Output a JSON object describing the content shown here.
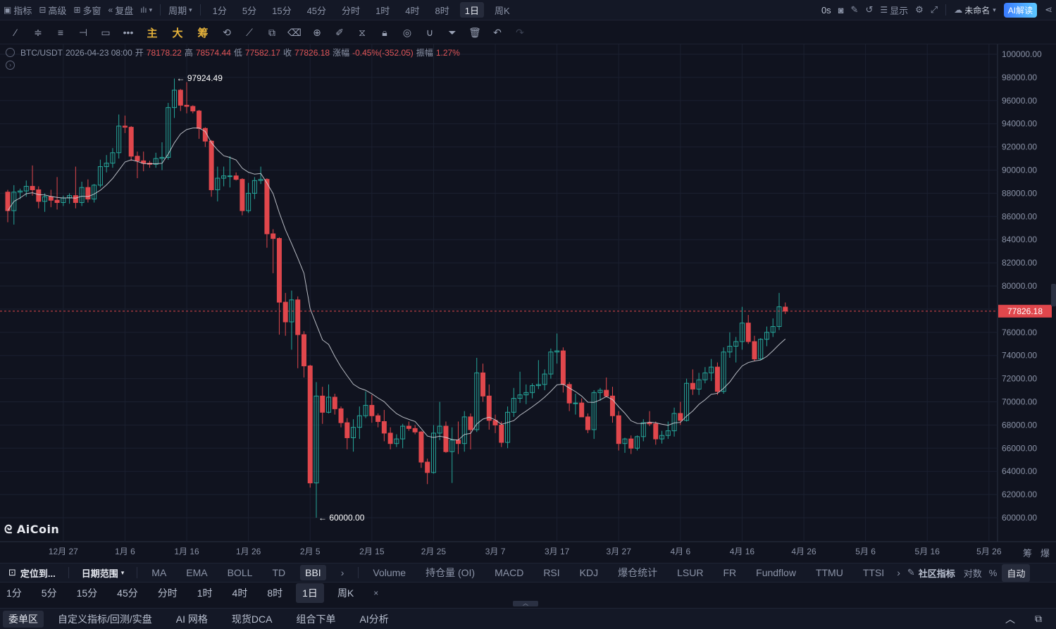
{
  "topbar": {
    "left": [
      {
        "icon": "indicator-icon",
        "label": "指标"
      },
      {
        "icon": "advanced-icon",
        "label": "高级"
      },
      {
        "icon": "multi-window-icon",
        "label": "多窗"
      },
      {
        "icon": "replay-icon",
        "label": "复盘"
      },
      {
        "icon": "chart-style-icon",
        "label": ""
      },
      {
        "icon": "",
        "label": "周期"
      }
    ],
    "periods": [
      "1分",
      "5分",
      "15分",
      "45分",
      "分时",
      "1时",
      "4时",
      "8时",
      "1日",
      "周K"
    ],
    "active_period": "1日",
    "right": {
      "countdown": "0s",
      "display_label": "显示",
      "workspace_label": "未命名",
      "ai_label": "AI解读"
    }
  },
  "tools": {
    "gold": [
      "主",
      "大",
      "筹"
    ]
  },
  "info": {
    "symbol": "BTC/USDT",
    "datetime": "2026-04-23 08:00",
    "open_label": "开",
    "open": "78178.22",
    "high_label": "高",
    "high": "78574.44",
    "low_label": "低",
    "low": "77582.17",
    "close_label": "收",
    "close": "77826.18",
    "change_label": "涨幅",
    "change": "-0.45%(-352.05)",
    "amp_label": "振幅",
    "amp": "1.27%"
  },
  "logo": "AiCoin",
  "chart_data": {
    "type": "candlestick",
    "y_axis": {
      "ticks": [
        "100000.00",
        "98000.00",
        "96000.00",
        "94000.00",
        "92000.00",
        "90000.00",
        "88000.00",
        "86000.00",
        "84000.00",
        "82000.00",
        "80000.00",
        "78000.00",
        "76000.00",
        "74000.00",
        "72000.00",
        "70000.00",
        "68000.00",
        "66000.00",
        "64000.00",
        "62000.00",
        "60000.00"
      ],
      "range": [
        59200,
        101000
      ]
    },
    "x_axis": {
      "ticks": [
        "12月 27",
        "1月 6",
        "1月 16",
        "1月 26",
        "2月 5",
        "2月 15",
        "2月 25",
        "3月 7",
        "3月 17",
        "3月 27",
        "4月 6",
        "4月 16",
        "4月 26",
        "5月 6",
        "5月 16",
        "5月 26"
      ],
      "start_date": "2025-12-18",
      "end_date": "2026-06-01"
    },
    "last_price": "77826.18",
    "high_marker": "97924.49",
    "low_marker": "60000.00",
    "up_color": "#26a69a",
    "down_color": "#e0474c",
    "ma_color": "#d6d9e0",
    "candles": [
      [
        "2025-12-18",
        88100,
        88300,
        85500,
        86500
      ],
      [
        "2025-12-19",
        86500,
        88700,
        85300,
        88100
      ],
      [
        "2025-12-20",
        88100,
        88400,
        87500,
        88200
      ],
      [
        "2025-12-21",
        88200,
        89100,
        87700,
        88600
      ],
      [
        "2025-12-22",
        88600,
        90400,
        87800,
        88300
      ],
      [
        "2025-12-23",
        88300,
        88600,
        86700,
        87300
      ],
      [
        "2025-12-24",
        87300,
        88000,
        86400,
        87700
      ],
      [
        "2025-12-25",
        87700,
        88300,
        86800,
        87400
      ],
      [
        "2025-12-26",
        87400,
        89400,
        86600,
        87200
      ],
      [
        "2025-12-27",
        87200,
        87800,
        86900,
        87600
      ],
      [
        "2025-12-28",
        87600,
        88000,
        87100,
        87800
      ],
      [
        "2025-12-29",
        87800,
        90300,
        86700,
        87200
      ],
      [
        "2025-12-30",
        87200,
        89000,
        86900,
        88500
      ],
      [
        "2025-12-31",
        88500,
        89200,
        87200,
        87500
      ],
      [
        "2026-01-01",
        87500,
        88800,
        87200,
        88700
      ],
      [
        "2026-01-02",
        88700,
        90900,
        88500,
        90300
      ],
      [
        "2026-01-03",
        90300,
        91300,
        89800,
        90600
      ],
      [
        "2026-01-04",
        90600,
        91900,
        90200,
        91500
      ],
      [
        "2026-01-05",
        91500,
        94800,
        91000,
        93800
      ],
      [
        "2026-01-06",
        93800,
        94700,
        93200,
        93700
      ],
      [
        "2026-01-07",
        93700,
        93800,
        90800,
        91200
      ],
      [
        "2026-01-08",
        91200,
        91600,
        89300,
        90800
      ],
      [
        "2026-01-09",
        90800,
        91600,
        89900,
        90600
      ],
      [
        "2026-01-10",
        90600,
        90800,
        90200,
        90500
      ],
      [
        "2026-01-11",
        90500,
        91500,
        90200,
        91000
      ],
      [
        "2026-01-12",
        91000,
        92400,
        90000,
        91100
      ],
      [
        "2026-01-13",
        91100,
        95800,
        90900,
        95400
      ],
      [
        "2026-01-14",
        95400,
        97900,
        94500,
        96900
      ],
      [
        "2026-01-15",
        96900,
        97000,
        95100,
        95600
      ],
      [
        "2026-01-16",
        95600,
        97600,
        94900,
        95500
      ],
      [
        "2026-01-17",
        95500,
        95600,
        94900,
        95100
      ],
      [
        "2026-01-18",
        95100,
        95200,
        92700,
        93600
      ],
      [
        "2026-01-19",
        93600,
        93700,
        92000,
        92500
      ],
      [
        "2026-01-20",
        92500,
        92600,
        87700,
        88300
      ],
      [
        "2026-01-21",
        88300,
        90300,
        87300,
        89300
      ],
      [
        "2026-01-22",
        89300,
        90300,
        88600,
        89500
      ],
      [
        "2026-01-23",
        89500,
        91200,
        88500,
        89500
      ],
      [
        "2026-01-24",
        89500,
        89800,
        89100,
        89200
      ],
      [
        "2026-01-25",
        89200,
        89300,
        86100,
        86500
      ],
      [
        "2026-01-26",
        86500,
        88900,
        86300,
        88000
      ],
      [
        "2026-01-27",
        88000,
        89400,
        87500,
        89100
      ],
      [
        "2026-01-28",
        89100,
        90300,
        88800,
        89200
      ],
      [
        "2026-01-29",
        89200,
        89300,
        83300,
        84500
      ],
      [
        "2026-01-30",
        84500,
        84900,
        81100,
        84100
      ],
      [
        "2026-01-31",
        84100,
        84200,
        75800,
        78600
      ],
      [
        "2026-02-01",
        78600,
        79400,
        75700,
        76900
      ],
      [
        "2026-02-02",
        76900,
        79600,
        74500,
        78800
      ],
      [
        "2026-02-03",
        78800,
        79100,
        72900,
        75800
      ],
      [
        "2026-02-04",
        75800,
        76100,
        72100,
        73100
      ],
      [
        "2026-02-05",
        73100,
        73200,
        62600,
        63000
      ],
      [
        "2026-02-06",
        63000,
        71700,
        60000,
        70500
      ],
      [
        "2026-02-07",
        70500,
        71300,
        68100,
        69100
      ],
      [
        "2026-02-08",
        69100,
        71500,
        69000,
        70400
      ],
      [
        "2026-02-09",
        70400,
        70700,
        68900,
        69400
      ],
      [
        "2026-02-10",
        69400,
        69600,
        67800,
        68200
      ],
      [
        "2026-02-11",
        68200,
        68600,
        65900,
        66900
      ],
      [
        "2026-02-12",
        66900,
        68500,
        65700,
        67800
      ],
      [
        "2026-02-13",
        67800,
        69600,
        66800,
        68800
      ],
      [
        "2026-02-14",
        68800,
        70900,
        68600,
        69700
      ],
      [
        "2026-02-15",
        69700,
        70600,
        68200,
        68800
      ],
      [
        "2026-02-16",
        68800,
        69000,
        67800,
        68300
      ],
      [
        "2026-02-17",
        68300,
        69300,
        66600,
        67300
      ],
      [
        "2026-02-18",
        67300,
        67800,
        65900,
        66400
      ],
      [
        "2026-02-19",
        66400,
        67200,
        66100,
        66800
      ],
      [
        "2026-02-20",
        66800,
        68100,
        66000,
        67900
      ],
      [
        "2026-02-21",
        67900,
        68300,
        67500,
        67700
      ],
      [
        "2026-02-22",
        67700,
        68000,
        67200,
        67400
      ],
      [
        "2026-02-23",
        67400,
        67500,
        64300,
        64800
      ],
      [
        "2026-02-24",
        64800,
        65100,
        62900,
        63900
      ],
      [
        "2026-02-25",
        63900,
        68000,
        63800,
        67300
      ],
      [
        "2026-02-26",
        67300,
        70000,
        66700,
        67900
      ],
      [
        "2026-02-27",
        67900,
        68300,
        65600,
        65700
      ],
      [
        "2026-02-28",
        65700,
        67800,
        63000,
        66700
      ],
      [
        "2026-03-01",
        66700,
        68300,
        65500,
        66400
      ],
      [
        "2026-03-02",
        66400,
        69200,
        65700,
        68700
      ],
      [
        "2026-03-03",
        68700,
        69000,
        65900,
        67600
      ],
      [
        "2026-03-04",
        67600,
        73800,
        67400,
        72500
      ],
      [
        "2026-03-05",
        72500,
        73300,
        70000,
        70500
      ],
      [
        "2026-03-06",
        70500,
        71500,
        67600,
        68400
      ],
      [
        "2026-03-07",
        68400,
        68900,
        67300,
        68000
      ],
      [
        "2026-03-08",
        68000,
        68300,
        66100,
        66500
      ],
      [
        "2026-03-09",
        66500,
        69600,
        66000,
        69100
      ],
      [
        "2026-03-10",
        69100,
        71200,
        68700,
        70300
      ],
      [
        "2026-03-11",
        70300,
        72600,
        69900,
        70600
      ],
      [
        "2026-03-12",
        70600,
        71500,
        69800,
        70800
      ],
      [
        "2026-03-13",
        70800,
        71600,
        70300,
        71400
      ],
      [
        "2026-03-14",
        71400,
        73600,
        71100,
        71500
      ],
      [
        "2026-03-15",
        71500,
        72800,
        71000,
        72400
      ],
      [
        "2026-03-16",
        72400,
        74600,
        72000,
        74300
      ],
      [
        "2026-03-17",
        74300,
        75900,
        73300,
        74400
      ],
      [
        "2026-03-18",
        74400,
        74700,
        70800,
        71500
      ],
      [
        "2026-03-19",
        71500,
        71700,
        69200,
        69900
      ],
      [
        "2026-03-20",
        69900,
        70700,
        68900,
        69900
      ],
      [
        "2026-03-21",
        69900,
        70300,
        68700,
        68700
      ],
      [
        "2026-03-22",
        68700,
        69000,
        67300,
        67600
      ],
      [
        "2026-03-23",
        67600,
        71000,
        66800,
        70800
      ],
      [
        "2026-03-24",
        70800,
        71200,
        70100,
        71000
      ],
      [
        "2026-03-25",
        71000,
        72100,
        70400,
        70500
      ],
      [
        "2026-03-26",
        70500,
        71300,
        68200,
        68800
      ],
      [
        "2026-03-27",
        68800,
        69200,
        65800,
        66400
      ],
      [
        "2026-03-28",
        66400,
        66900,
        65600,
        66800
      ],
      [
        "2026-03-29",
        66800,
        67100,
        65500,
        66000
      ],
      [
        "2026-03-30",
        66000,
        67100,
        65800,
        67000
      ],
      [
        "2026-03-31",
        67000,
        68500,
        66600,
        68200
      ],
      [
        "2026-04-01",
        68200,
        69200,
        67900,
        68100
      ],
      [
        "2026-04-02",
        68100,
        68300,
        66300,
        66800
      ],
      [
        "2026-04-03",
        66800,
        67500,
        66400,
        67100
      ],
      [
        "2026-04-04",
        67100,
        68300,
        66800,
        67500
      ],
      [
        "2026-04-05",
        67500,
        69500,
        67000,
        69000
      ],
      [
        "2026-04-06",
        69000,
        70000,
        68000,
        68400
      ],
      [
        "2026-04-07",
        68400,
        72000,
        68300,
        71600
      ],
      [
        "2026-04-08",
        71600,
        72800,
        70600,
        71100
      ],
      [
        "2026-04-09",
        71100,
        72500,
        70600,
        71900
      ],
      [
        "2026-04-10",
        71900,
        73000,
        71600,
        72500
      ],
      [
        "2026-04-11",
        72500,
        73700,
        71800,
        73000
      ],
      [
        "2026-04-12",
        73000,
        73400,
        70600,
        70900
      ],
      [
        "2026-04-13",
        70900,
        74700,
        70700,
        74300
      ],
      [
        "2026-04-14",
        74300,
        76000,
        73800,
        74800
      ],
      [
        "2026-04-15",
        74800,
        75600,
        73400,
        75200
      ],
      [
        "2026-04-16",
        75200,
        78200,
        74500,
        76800
      ],
      [
        "2026-04-17",
        76800,
        77500,
        75000,
        75200
      ],
      [
        "2026-04-18",
        75200,
        75700,
        73500,
        73700
      ],
      [
        "2026-04-19",
        73700,
        75500,
        73600,
        75400
      ],
      [
        "2026-04-20",
        75400,
        76500,
        74800,
        76000
      ],
      [
        "2026-04-21",
        76000,
        77200,
        75600,
        76500
      ],
      [
        "2026-04-22",
        76500,
        79400,
        76200,
        78200
      ],
      [
        "2026-04-23",
        78178,
        78574,
        77582,
        77826
      ]
    ]
  },
  "indicators": {
    "locate_label": "定位到...",
    "date_range_label": "日期范围",
    "main": [
      "MA",
      "EMA",
      "BOLL",
      "TD",
      "BBI"
    ],
    "main_active": "BBI",
    "sub": [
      "Volume",
      "持仓量 (OI)",
      "MACD",
      "RSI",
      "KDJ",
      "爆仓统计",
      "LSUR",
      "FR",
      "Fundflow",
      "TTMU",
      "TTSI"
    ],
    "community_label": "社区指标",
    "log_label": "对数",
    "pct_label": "%",
    "auto_label": "自动"
  },
  "side_labels": {
    "chou": "筹",
    "bao": "爆"
  },
  "period_row": {
    "items": [
      "1分",
      "5分",
      "15分",
      "45分",
      "分时",
      "1时",
      "4时",
      "8时",
      "1日",
      "周K"
    ],
    "active": "1日"
  },
  "bottom_tabs": {
    "items": [
      "委单区",
      "自定义指标/回测/实盘",
      "AI 网格",
      "现货DCA",
      "组合下单",
      "AI分析"
    ],
    "active": "委单区"
  }
}
